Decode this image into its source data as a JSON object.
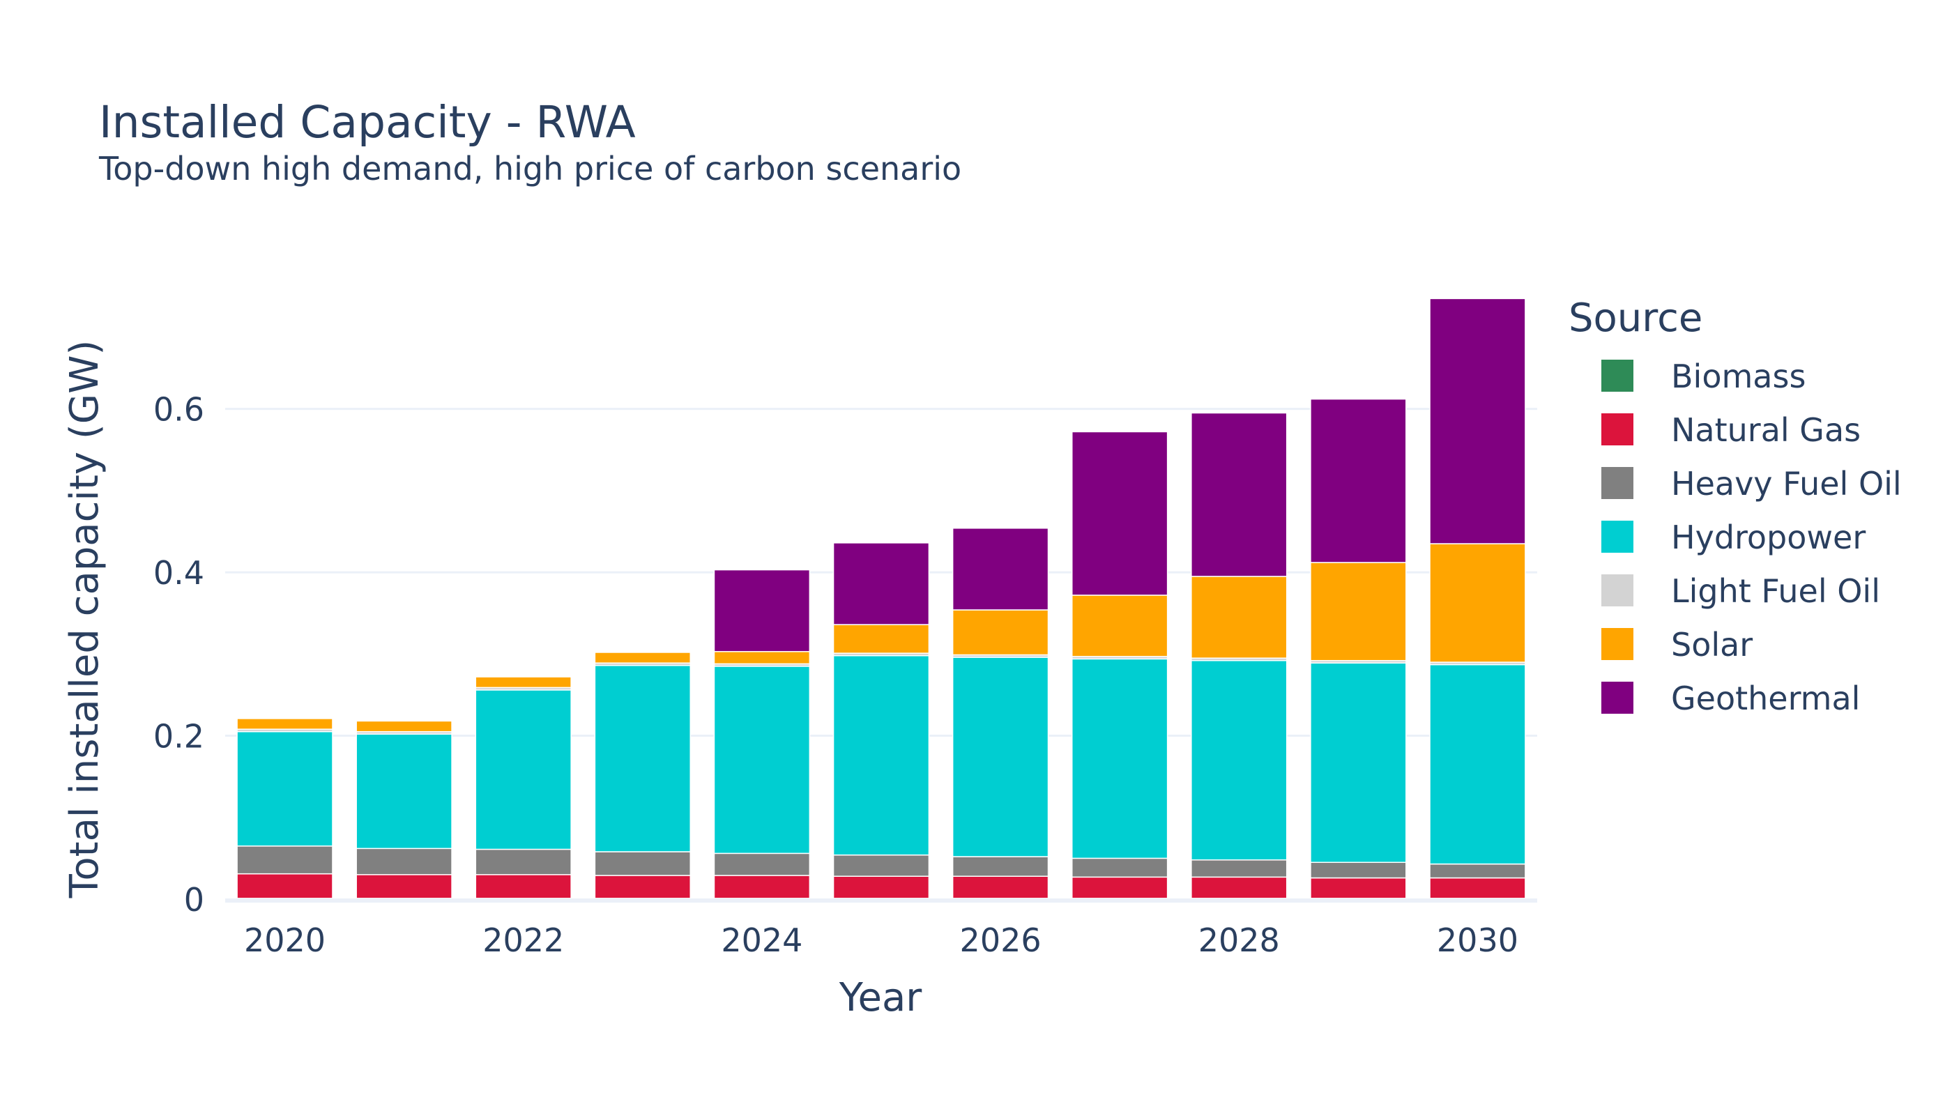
{
  "chart_data": {
    "type": "bar",
    "stacked": true,
    "title": "Installed Capacity - RWA",
    "subtitle": "Top-down high demand, high price of carbon scenario",
    "xlabel": "Year",
    "ylabel": "Total installed capacity (GW)",
    "x": [
      2020,
      2021,
      2022,
      2023,
      2024,
      2025,
      2026,
      2027,
      2028,
      2029,
      2030
    ],
    "x_ticks": [
      "2020",
      "2022",
      "2024",
      "2026",
      "2028",
      "2030"
    ],
    "y_ticks": [
      "0",
      "0.2",
      "0.4",
      "0.6"
    ],
    "ylim": [
      0,
      0.772
    ],
    "grid": true,
    "legend_title": "Source",
    "legend_position": "right",
    "series": [
      {
        "name": "Biomass",
        "color": "#2e8b57",
        "values": [
          0.001,
          0.001,
          0.001,
          0.001,
          0.001,
          0.001,
          0.001,
          0.001,
          0.001,
          0.001,
          0.001
        ]
      },
      {
        "name": "Natural Gas",
        "color": "#dc143c",
        "values": [
          0.03,
          0.029,
          0.029,
          0.028,
          0.028,
          0.027,
          0.027,
          0.026,
          0.026,
          0.025,
          0.025
        ]
      },
      {
        "name": "Heavy Fuel Oil",
        "color": "#808080",
        "values": [
          0.034,
          0.032,
          0.031,
          0.029,
          0.027,
          0.026,
          0.024,
          0.023,
          0.021,
          0.019,
          0.017
        ]
      },
      {
        "name": "Hydropower",
        "color": "#00ced1",
        "values": [
          0.14,
          0.14,
          0.195,
          0.228,
          0.229,
          0.244,
          0.244,
          0.244,
          0.244,
          0.244,
          0.244
        ]
      },
      {
        "name": "Light Fuel Oil",
        "color": "#d3d3d3",
        "values": [
          0.003,
          0.003,
          0.003,
          0.003,
          0.003,
          0.003,
          0.003,
          0.003,
          0.003,
          0.003,
          0.003
        ]
      },
      {
        "name": "Solar",
        "color": "#ffa500",
        "values": [
          0.013,
          0.013,
          0.013,
          0.013,
          0.015,
          0.035,
          0.055,
          0.075,
          0.1,
          0.12,
          0.145
        ]
      },
      {
        "name": "Geothermal",
        "color": "#800080",
        "values": [
          0,
          0,
          0,
          0,
          0.1,
          0.1,
          0.1,
          0.2,
          0.2,
          0.2,
          0.3
        ]
      }
    ]
  }
}
